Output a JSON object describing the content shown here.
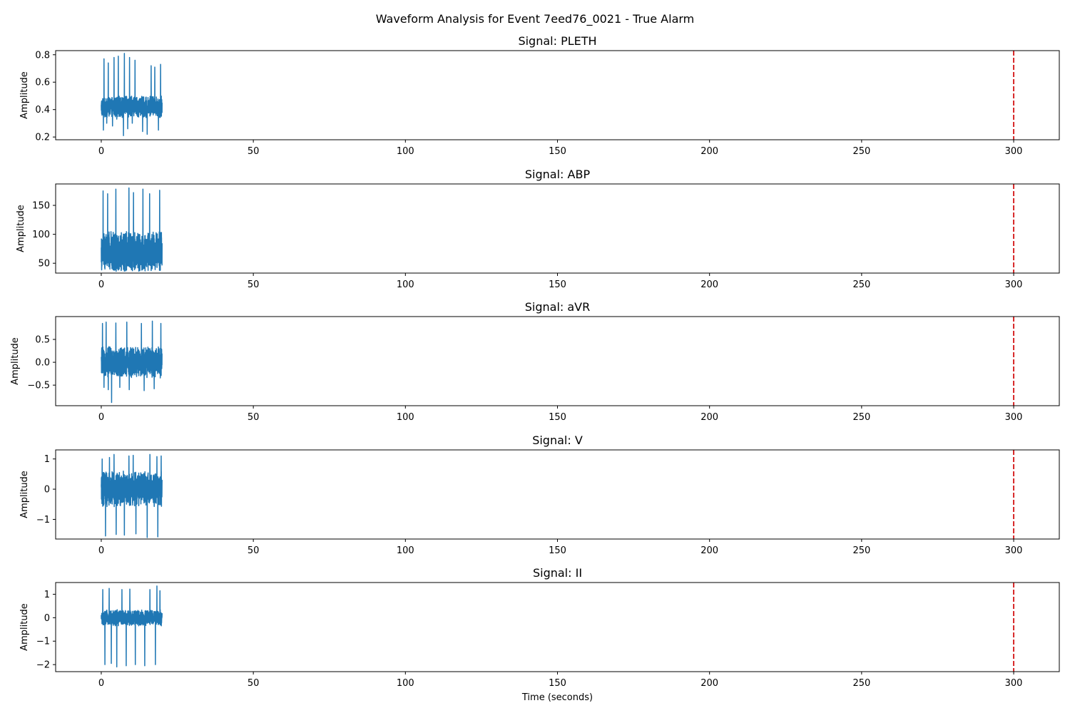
{
  "figure": {
    "suptitle": "Waveform Analysis for Event 7eed76_0021 - True Alarm",
    "xlabel": "Time (seconds)"
  },
  "chart_data": [
    {
      "type": "line",
      "title": "Signal: PLETH",
      "ylabel": "Amplitude",
      "xlim": [
        -15,
        315
      ],
      "ylim": [
        0.18,
        0.83
      ],
      "xticks": [
        0,
        50,
        100,
        150,
        200,
        250,
        300
      ],
      "yticks": [
        0.2,
        0.4,
        0.6,
        0.8
      ],
      "ytick_labels": [
        "0.2",
        "0.4",
        "0.6",
        "0.8"
      ],
      "alarm_time": 300,
      "series": [
        {
          "color": "#1f77b4",
          "duration": 20,
          "samples": 1000,
          "baseline": 0.42,
          "noise": 0.08,
          "spikes": [
            [
              0.7,
              0.25
            ],
            [
              0.9,
              0.77
            ],
            [
              1.8,
              0.3
            ],
            [
              2.3,
              0.74
            ],
            [
              3.7,
              0.28
            ],
            [
              4.2,
              0.78
            ],
            [
              5.1,
              0.33
            ],
            [
              5.6,
              0.79
            ],
            [
              7.3,
              0.21
            ],
            [
              7.6,
              0.81
            ],
            [
              8.7,
              0.26
            ],
            [
              9.3,
              0.78
            ],
            [
              10.2,
              0.3
            ],
            [
              11.1,
              0.76
            ],
            [
              13.6,
              0.24
            ],
            [
              15.1,
              0.22
            ],
            [
              16.4,
              0.72
            ],
            [
              17.6,
              0.71
            ],
            [
              18.8,
              0.25
            ],
            [
              19.5,
              0.73
            ]
          ]
        }
      ]
    },
    {
      "type": "line",
      "title": "Signal: ABP",
      "ylabel": "Amplitude",
      "xlim": [
        -15,
        315
      ],
      "ylim": [
        33,
        187
      ],
      "xticks": [
        0,
        50,
        100,
        150,
        200,
        250,
        300
      ],
      "yticks": [
        50,
        100,
        150
      ],
      "ytick_labels": [
        "50",
        "100",
        "150"
      ],
      "alarm_time": 300,
      "series": [
        {
          "color": "#1f77b4",
          "duration": 20,
          "samples": 1000,
          "baseline": 70,
          "noise": 35,
          "spikes": [
            [
              0.2,
              45
            ],
            [
              0.6,
              175
            ],
            [
              1.2,
              40
            ],
            [
              2.1,
              170
            ],
            [
              3.4,
              50
            ],
            [
              4.8,
              178
            ],
            [
              6.2,
              45
            ],
            [
              9.1,
              180
            ],
            [
              10.6,
              172
            ],
            [
              13.7,
              178
            ],
            [
              14.8,
              45
            ],
            [
              15.9,
              170
            ],
            [
              18.3,
              50
            ],
            [
              19.2,
              176
            ]
          ]
        }
      ]
    },
    {
      "type": "line",
      "title": "Signal: aVR",
      "ylabel": "Amplitude",
      "xlim": [
        -15,
        315
      ],
      "ylim": [
        -0.95,
        1.0
      ],
      "xticks": [
        0,
        50,
        100,
        150,
        200,
        250,
        300
      ],
      "yticks": [
        -0.5,
        0.0,
        0.5
      ],
      "ytick_labels": [
        "−0.5",
        "0.0",
        "0.5"
      ],
      "alarm_time": 300,
      "series": [
        {
          "color": "#1f77b4",
          "duration": 20,
          "samples": 1000,
          "baseline": 0.0,
          "noise": 0.35,
          "spikes": [
            [
              0.4,
              0.85
            ],
            [
              0.9,
              -0.55
            ],
            [
              1.6,
              0.88
            ],
            [
              2.3,
              -0.6
            ],
            [
              3.4,
              -0.88
            ],
            [
              4.8,
              0.86
            ],
            [
              6.1,
              -0.55
            ],
            [
              8.4,
              0.88
            ],
            [
              9.2,
              -0.6
            ],
            [
              13.2,
              0.85
            ],
            [
              14.1,
              -0.62
            ],
            [
              16.8,
              0.9
            ],
            [
              17.4,
              -0.58
            ],
            [
              19.6,
              0.85
            ]
          ]
        }
      ]
    },
    {
      "type": "line",
      "title": "Signal: V",
      "ylabel": "Amplitude",
      "xlim": [
        -15,
        315
      ],
      "ylim": [
        -1.65,
        1.3
      ],
      "xticks": [
        0,
        50,
        100,
        150,
        200,
        250,
        300
      ],
      "yticks": [
        -1,
        0,
        1
      ],
      "ytick_labels": [
        "−1",
        "0",
        "1"
      ],
      "alarm_time": 300,
      "series": [
        {
          "color": "#1f77b4",
          "duration": 20,
          "samples": 1000,
          "baseline": 0.0,
          "noise": 0.6,
          "spikes": [
            [
              0.3,
              1.0
            ],
            [
              1.4,
              -1.55
            ],
            [
              2.7,
              1.05
            ],
            [
              4.2,
              1.15
            ],
            [
              4.9,
              -1.5
            ],
            [
              7.6,
              -1.52
            ],
            [
              9.1,
              1.1
            ],
            [
              10.5,
              1.12
            ],
            [
              11.4,
              -1.48
            ],
            [
              15.1,
              -1.6
            ],
            [
              16.0,
              1.15
            ],
            [
              18.3,
              1.08
            ],
            [
              18.6,
              -1.58
            ],
            [
              19.7,
              1.1
            ]
          ]
        }
      ]
    },
    {
      "type": "line",
      "title": "Signal: II",
      "ylabel": "Amplitude",
      "xlim": [
        -15,
        315
      ],
      "ylim": [
        -2.3,
        1.5
      ],
      "xticks": [
        0,
        50,
        100,
        150,
        200,
        250,
        300
      ],
      "yticks": [
        -2,
        -1,
        0,
        1
      ],
      "ytick_labels": [
        "−2",
        "−1",
        "0",
        "1"
      ],
      "alarm_time": 300,
      "series": [
        {
          "color": "#1f77b4",
          "duration": 20,
          "samples": 1000,
          "baseline": 0.0,
          "noise": 0.35,
          "spikes": [
            [
              0.5,
              1.2
            ],
            [
              1.2,
              -2.0
            ],
            [
              2.6,
              1.25
            ],
            [
              3.3,
              -1.95
            ],
            [
              5.1,
              -2.1
            ],
            [
              6.8,
              1.2
            ],
            [
              8.2,
              -2.05
            ],
            [
              9.4,
              1.22
            ],
            [
              11.2,
              -2.0
            ],
            [
              14.3,
              -2.05
            ],
            [
              16.0,
              1.2
            ],
            [
              17.8,
              -2.0
            ],
            [
              18.3,
              1.35
            ],
            [
              19.3,
              1.15
            ]
          ]
        }
      ]
    }
  ]
}
